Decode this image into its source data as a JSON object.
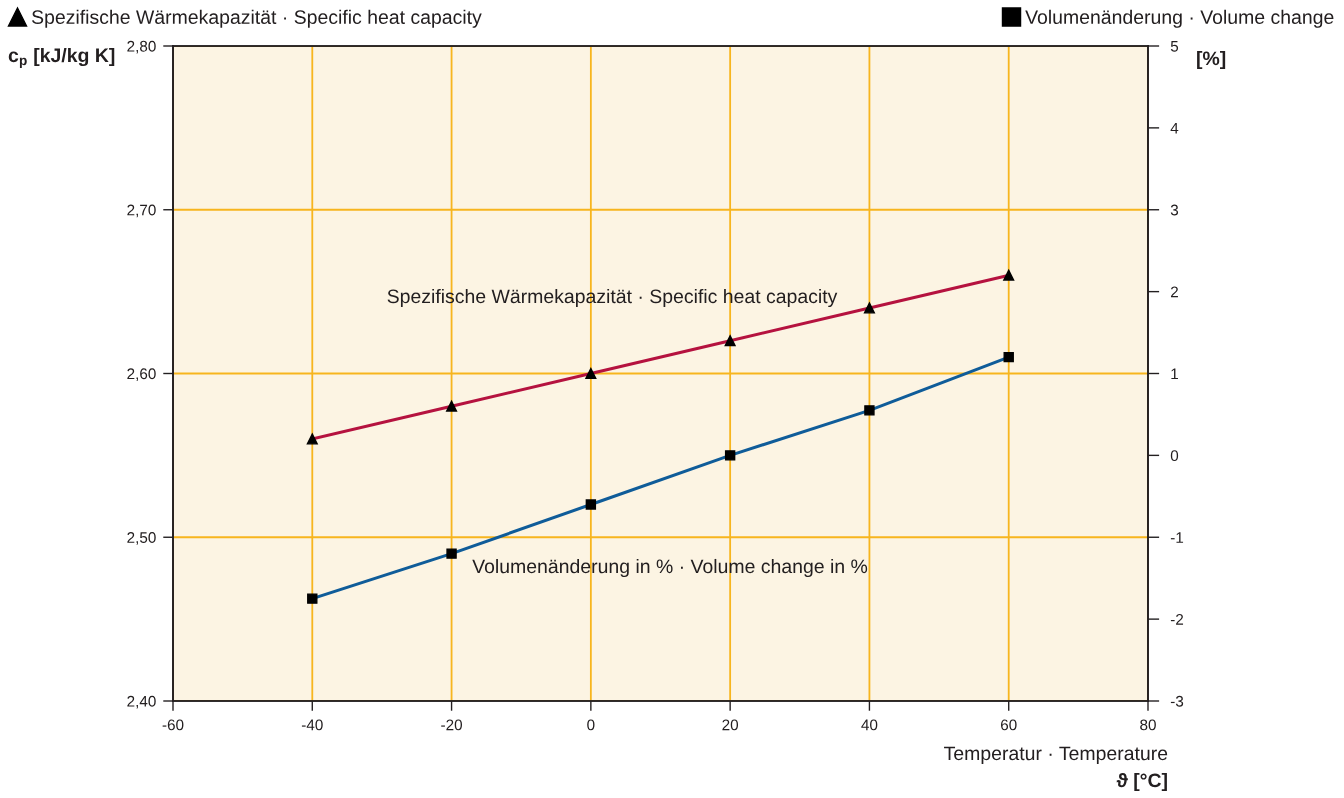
{
  "chart_data": {
    "type": "line",
    "xlabel": "Temperatur · Temperature\nϑ [°C]",
    "ylabel": "c$_{p}$ [kJ/kg K]",
    "y2label": "[%]",
    "x": [
      -40,
      -20,
      0,
      20,
      40,
      60
    ],
    "series": [
      {
        "name": "Spezifische Wärmekapazität · Specific heat capacity",
        "color": "#b5123f",
        "marker": "triangle",
        "values": [
          2.56,
          2.58,
          2.6,
          2.62,
          2.64,
          2.66
        ]
      },
      {
        "name": "Volumenänderung · Volume change",
        "color": "#0f5c99",
        "marker": "square",
        "axis": "y2",
        "values": [
          -1.75,
          -1.2,
          -0.6,
          0,
          0.55,
          1.2
        ]
      }
    ],
    "xlim": [
      -60,
      80
    ],
    "xticks": [
      -60,
      -40,
      -20,
      0,
      20,
      40,
      60,
      80
    ],
    "ylim": [
      2.4,
      2.8
    ],
    "yticks": [
      {
        "value": 2.4,
        "label": "2,40"
      },
      {
        "value": 2.5,
        "label": "2,50"
      },
      {
        "value": 2.6,
        "label": "2,60"
      },
      {
        "value": 2.7,
        "label": "2,70"
      },
      {
        "value": 2.8,
        "label": "2,80"
      }
    ],
    "y2lim": [
      -3,
      5
    ],
    "y2ticks": [
      -3,
      -2,
      -1,
      0,
      1,
      2,
      3,
      4,
      5
    ],
    "annotations": [
      "Spezifische Wärmekapazität · Specific heat capacity",
      "Volumenänderung in % · Volume change in %"
    ],
    "grid": true,
    "legend": "top",
    "line_style": "solid"
  }
}
